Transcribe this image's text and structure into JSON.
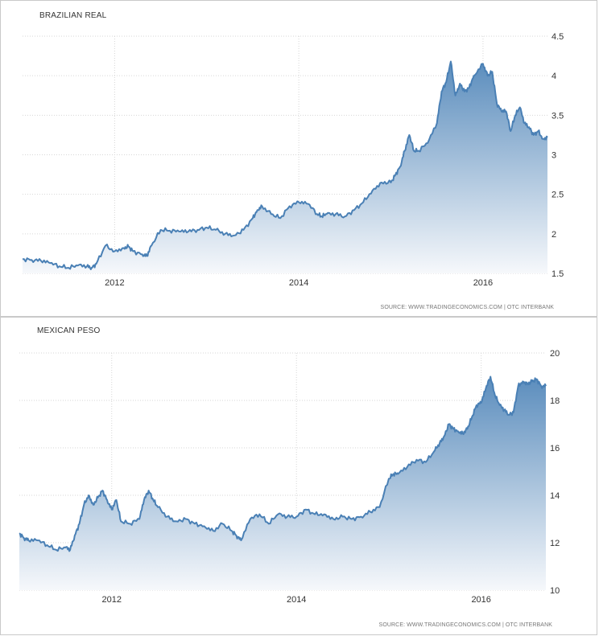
{
  "chart_data": [
    {
      "type": "area",
      "title": "BRAZILIAN REAL",
      "source": "SOURCE: WWW.TRADINGECONOMICS.COM | OTC INTERBANK",
      "xlabel": "",
      "ylabel": "",
      "xlim": [
        2011.0,
        2016.7
      ],
      "ylim": [
        1.5,
        4.5
      ],
      "x_ticks": [
        "2012",
        "2014",
        "2016"
      ],
      "y_ticks": [
        "1.5",
        "2",
        "2.5",
        "3",
        "3.5",
        "4",
        "4.5"
      ],
      "grid": true,
      "line_color": "#4a80b5",
      "fill_top_color": "#5b8dbd",
      "fill_bottom_color": "#f6f8fb",
      "series": [
        {
          "x": [
            2011.0,
            2011.1,
            2011.2,
            2011.3,
            2011.4,
            2011.5,
            2011.6,
            2011.7,
            2011.75,
            2011.8,
            2011.9,
            2012.0,
            2012.1,
            2012.15,
            2012.2,
            2012.3,
            2012.35,
            2012.4,
            2012.5,
            2012.6,
            2012.7,
            2012.8,
            2012.9,
            2013.0,
            2013.1,
            2013.2,
            2013.3,
            2013.4,
            2013.5,
            2013.55,
            2013.6,
            2013.7,
            2013.8,
            2013.9,
            2014.0,
            2014.1,
            2014.2,
            2014.25,
            2014.3,
            2014.4,
            2014.5,
            2014.6,
            2014.7,
            2014.8,
            2014.9,
            2015.0,
            2015.05,
            2015.1,
            2015.15,
            2015.2,
            2015.25,
            2015.3,
            2015.4,
            2015.5,
            2015.55,
            2015.6,
            2015.65,
            2015.7,
            2015.75,
            2015.8,
            2015.85,
            2015.9,
            2016.0,
            2016.05,
            2016.1,
            2016.15,
            2016.2,
            2016.25,
            2016.3,
            2016.35,
            2016.4,
            2016.45,
            2016.5,
            2016.55,
            2016.6,
            2016.65,
            2016.7
          ],
          "y": [
            1.68,
            1.67,
            1.66,
            1.63,
            1.59,
            1.57,
            1.6,
            1.59,
            1.57,
            1.62,
            1.85,
            1.78,
            1.82,
            1.84,
            1.78,
            1.74,
            1.72,
            1.85,
            2.05,
            2.04,
            2.03,
            2.03,
            2.05,
            2.08,
            2.05,
            2.0,
            1.98,
            2.05,
            2.2,
            2.3,
            2.35,
            2.25,
            2.2,
            2.35,
            2.4,
            2.38,
            2.25,
            2.22,
            2.25,
            2.25,
            2.22,
            2.3,
            2.4,
            2.55,
            2.65,
            2.65,
            2.75,
            2.85,
            3.05,
            3.25,
            3.05,
            3.05,
            3.15,
            3.4,
            3.8,
            3.92,
            4.18,
            3.75,
            3.9,
            3.8,
            3.85,
            4.0,
            4.15,
            4.0,
            4.05,
            3.65,
            3.55,
            3.55,
            3.3,
            3.5,
            3.6,
            3.4,
            3.35,
            3.25,
            3.3,
            3.2,
            3.22
          ]
        }
      ]
    },
    {
      "type": "area",
      "title": "MEXICAN PESO",
      "source": "SOURCE: WWW.TRADINGECONOMICS.COM | OTC INTERBANK",
      "xlabel": "",
      "ylabel": "",
      "xlim": [
        2011.0,
        2016.7
      ],
      "ylim": [
        10,
        20
      ],
      "x_ticks": [
        "2012",
        "2014",
        "2016"
      ],
      "y_ticks": [
        "10",
        "12",
        "14",
        "16",
        "18",
        "20"
      ],
      "grid": true,
      "line_color": "#4a80b5",
      "fill_top_color": "#5b8dbd",
      "fill_bottom_color": "#f6f8fb",
      "series": [
        {
          "x": [
            2011.0,
            2011.05,
            2011.1,
            2011.2,
            2011.3,
            2011.4,
            2011.5,
            2011.55,
            2011.6,
            2011.65,
            2011.7,
            2011.75,
            2011.8,
            2011.85,
            2011.9,
            2011.95,
            2012.0,
            2012.05,
            2012.1,
            2012.2,
            2012.3,
            2012.35,
            2012.4,
            2012.45,
            2012.5,
            2012.6,
            2012.7,
            2012.8,
            2012.9,
            2013.0,
            2013.1,
            2013.2,
            2013.3,
            2013.35,
            2013.4,
            2013.5,
            2013.6,
            2013.7,
            2013.8,
            2013.9,
            2014.0,
            2014.1,
            2014.2,
            2014.3,
            2014.4,
            2014.5,
            2014.6,
            2014.7,
            2014.8,
            2014.9,
            2015.0,
            2015.05,
            2015.1,
            2015.2,
            2015.3,
            2015.4,
            2015.5,
            2015.55,
            2015.6,
            2015.65,
            2015.7,
            2015.75,
            2015.8,
            2015.85,
            2015.9,
            2015.95,
            2016.0,
            2016.05,
            2016.1,
            2016.15,
            2016.2,
            2016.25,
            2016.3,
            2016.35,
            2016.4,
            2016.45,
            2016.5,
            2016.55,
            2016.6,
            2016.65,
            2016.7
          ],
          "y": [
            12.4,
            12.2,
            12.1,
            12.1,
            11.9,
            11.7,
            11.8,
            11.7,
            12.3,
            12.8,
            13.6,
            14.0,
            13.6,
            13.9,
            14.2,
            13.8,
            13.4,
            13.8,
            12.9,
            12.8,
            13.0,
            13.8,
            14.2,
            13.8,
            13.5,
            13.1,
            12.9,
            13.0,
            12.8,
            12.7,
            12.5,
            12.8,
            12.5,
            12.3,
            12.1,
            13.0,
            13.2,
            12.8,
            13.2,
            13.1,
            13.1,
            13.4,
            13.2,
            13.2,
            13.0,
            13.1,
            13.0,
            13.1,
            13.3,
            13.5,
            14.7,
            14.9,
            14.9,
            15.2,
            15.5,
            15.4,
            15.9,
            16.2,
            16.5,
            17.0,
            16.8,
            16.7,
            16.6,
            16.8,
            17.3,
            17.8,
            17.9,
            18.5,
            19.0,
            18.2,
            17.8,
            17.6,
            17.4,
            17.5,
            18.6,
            18.8,
            18.7,
            18.8,
            18.9,
            18.6,
            18.6
          ]
        }
      ]
    }
  ]
}
